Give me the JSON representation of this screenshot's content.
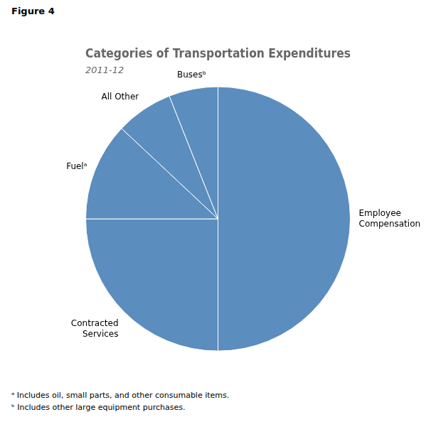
{
  "chart_data": {
    "type": "pie",
    "title": "Categories of Transportation Expenditures",
    "subtitle": "2011-12",
    "categories": [
      "Employee\nCompensation",
      "Contracted\nServices",
      "Fuelᵃ",
      "All Other",
      "Busesᵇ"
    ],
    "values": [
      50.0,
      25.0,
      12.0,
      7.0,
      6.0
    ],
    "color": "#5b8dbe",
    "annotations": [
      "Figure 4",
      "ᵃ Includes oil, small parts, and other consumable items.",
      "ᵇ Includes other large equipment purchases."
    ]
  }
}
